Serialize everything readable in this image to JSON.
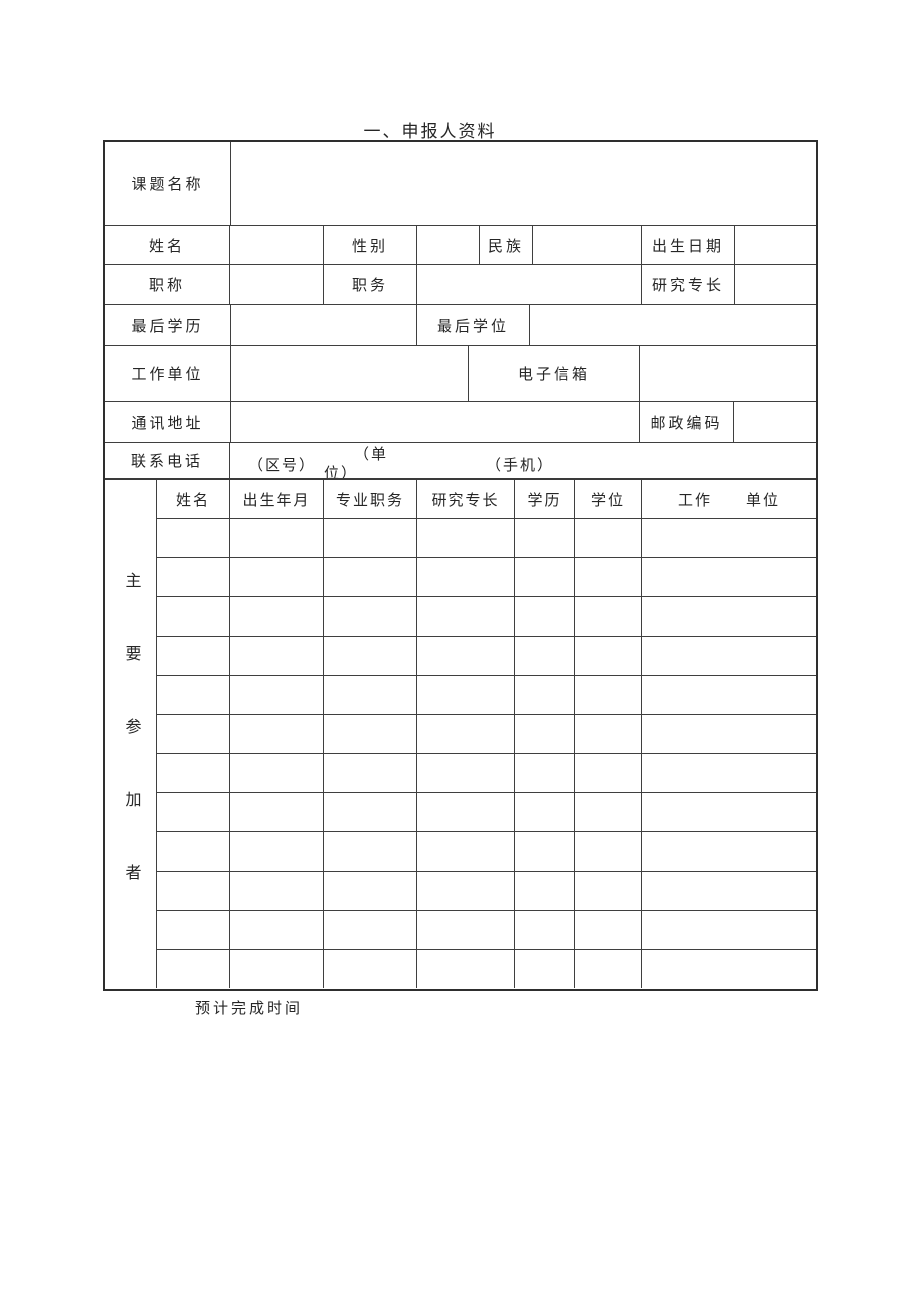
{
  "title": "一、申报人资料",
  "form": {
    "project_name_label": "课题名称",
    "name_label": "姓名",
    "gender_label": "性别",
    "ethnicity_label": "民族",
    "birth_date_label": "出生日期",
    "professional_title_label": "职称",
    "position_label": "职务",
    "research_specialty_label": "研究专长",
    "final_education_label": "最后学历",
    "final_degree_label": "最后学位",
    "work_unit_label": "工作单位",
    "email_label": "电子信箱",
    "mailing_address_label": "通讯地址",
    "postal_code_label": "邮政编码",
    "phone_label": "联系电话",
    "phone_area_code_hint": "（区号）",
    "phone_unit_hint_line1": "（单",
    "phone_unit_hint_line2": "位）",
    "phone_mobile_hint": "（手机）"
  },
  "participants": {
    "section_label": "主要参加者",
    "headers": [
      "姓名",
      "出生年月",
      "专业职务",
      "研究专长",
      "学历",
      "学位",
      "工作　　单位"
    ],
    "row_count": 12
  },
  "footer_note": "预计完成时间"
}
